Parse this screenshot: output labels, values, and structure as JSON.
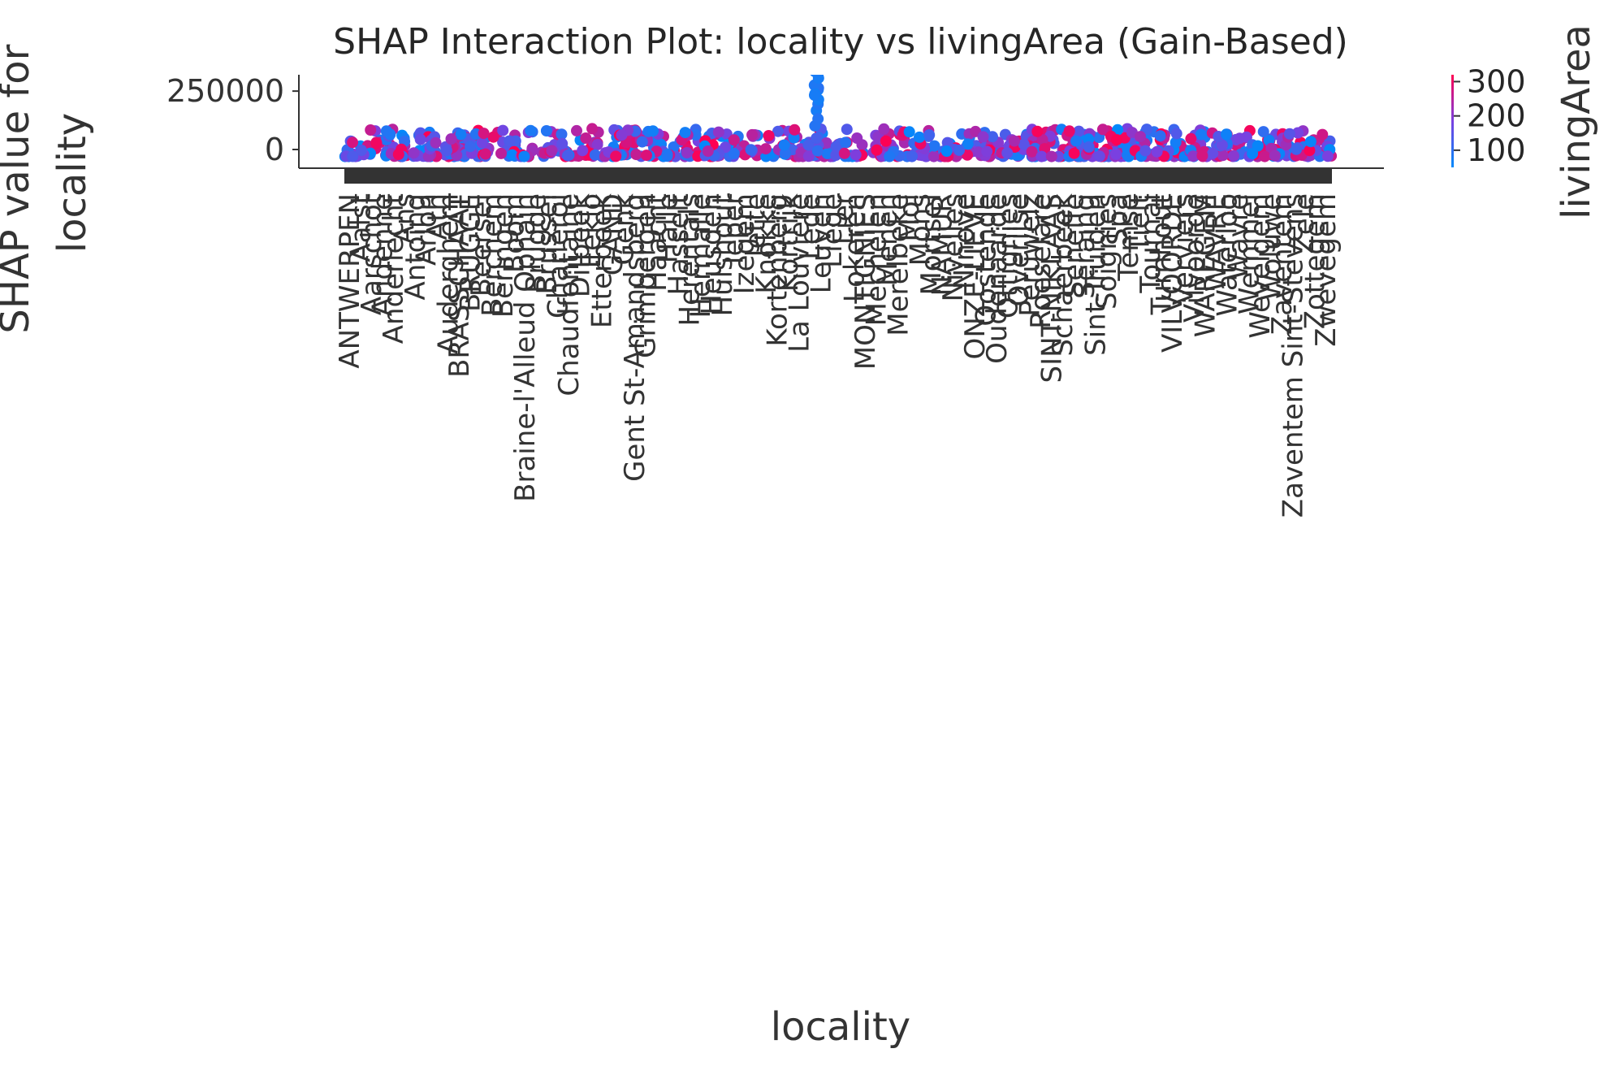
{
  "chart_data": {
    "type": "scatter",
    "title": "SHAP Interaction Plot: locality vs livingArea (Gain-Based)",
    "xlabel": "locality",
    "ylabel": "SHAP value for\nlocality",
    "y_ticks": [
      250000,
      0
    ],
    "ylim": [
      -80000,
      320000
    ],
    "colorbar": {
      "label": "livingArea",
      "ticks": [
        300,
        200,
        100
      ],
      "range": [
        50,
        320
      ],
      "colors": {
        "low": "#008afb",
        "mid": "#7a40e0",
        "high": "#ff0052"
      }
    },
    "x_category_labels": [
      "ANTWERPEN",
      "Aalst",
      "Aarschot",
      "Andenne",
      "Anderlecht",
      "Ans",
      "Antoing",
      "Arlon",
      "Ath",
      "Auderghem",
      "BRASSCHAAT",
      "BRUGGE",
      "Beersel",
      "Berchem",
      "Beringen",
      "Boom",
      "Braine-l'Alleud Ophain",
      "Brugge",
      "Brussel",
      "Charleroi",
      "Chaudfontaine",
      "Dilbeek",
      "Eeklo",
      "Etterbeek",
      "GAND",
      "Genk",
      "Gent St-Amandsberg",
      "Grimbergen",
      "Haacht",
      "Halle",
      "Hasselt",
      "Herentals",
      "Hermalle",
      "Heusden",
      "Hulshout",
      "Ieper",
      "Izegem",
      "Jette",
      "Knokke",
      "Kortenberg",
      "Kortrijk",
      "La Louvière",
      "Lede",
      "Leuven",
      "Liège",
      "Lier",
      "Lokeren",
      "MONTIGNIES",
      "Mechelen",
      "Menen",
      "Merelbeke",
      "Mol",
      "Mons",
      "Mortsel",
      "NAMUR",
      "Nivelles",
      "Ninove",
      "ONZE-LIEVE",
      "Oostende",
      "Oudenaarde",
      "Ottignies",
      "Overijse",
      "Péruwelz",
      "Roeselare",
      "SINT-NIKLAAS",
      "Schaerbeek",
      "Seneffe",
      "Seraing",
      "Sint-Truiden",
      "Soignies",
      "Spa",
      "Temse",
      "Tielt",
      "Tournai",
      "Turnhout",
      "VILVOORDE",
      "Verviers",
      "Vilvoorde",
      "WAREGEM",
      "WAVRE",
      "Waterloo",
      "Wavre",
      "Wemmel",
      "Wevelgem",
      "Woluwe",
      "Zaventem",
      "Zaventem Sint-Stevens",
      "Zele",
      "Zottegem",
      "Zwevegem"
    ]
  }
}
